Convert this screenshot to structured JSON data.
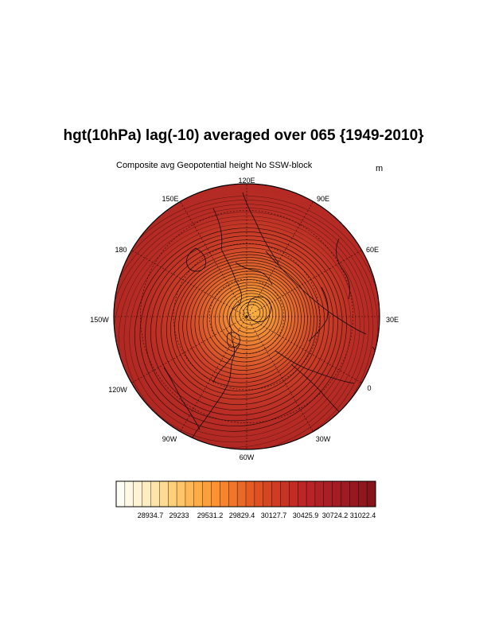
{
  "title": "hgt(10hPa) lag(-10) averaged over 065 {1949-2010}",
  "subtitle": "Composite avg Geopotential height No SSW-block",
  "units": "m",
  "longitude_labels": [
    "120E",
    "90E",
    "60E",
    "30E",
    "0",
    "30W",
    "60W",
    "90W",
    "120W",
    "150W",
    "180",
    "150E"
  ],
  "colorbar": {
    "tick_labels": [
      "28934.7",
      "29233",
      "29531.2",
      "29829.4",
      "30127.7",
      "30425.9",
      "30724.2",
      "31022.4"
    ],
    "colors": [
      "#fffff6",
      "#fff9e4",
      "#fff3d2",
      "#ffecbf",
      "#ffe4a9",
      "#ffdb92",
      "#ffd07a",
      "#ffc566",
      "#ffb954",
      "#ffac45",
      "#ff9f3a",
      "#fc9232",
      "#f7842d",
      "#f17629",
      "#ea6926",
      "#e45c24",
      "#dc5022",
      "#d54522",
      "#cf3b23",
      "#c93324",
      "#c32c25",
      "#bd2626",
      "#b72326",
      "#b02126",
      "#a91f25",
      "#a31d24",
      "#9d1b22",
      "#961920",
      "#8f171e",
      "#88141b"
    ]
  },
  "colors": {
    "disk_outer": "#b42a23",
    "disk_mid": "#d2462a",
    "disk_center": "#f4a742",
    "lines": "#1a0808",
    "grid": "#2a0a0a"
  }
}
